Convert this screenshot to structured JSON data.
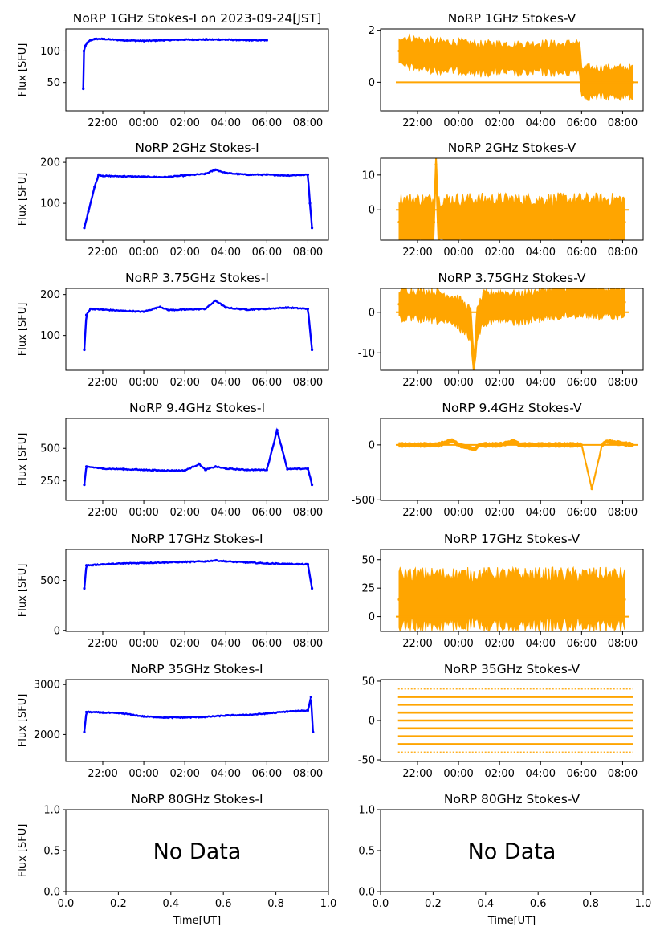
{
  "figure": {
    "x_label": "Time[UT]",
    "y_label": "Flux [SFU]",
    "no_data_text": "No Data",
    "time_ticks": [
      "22:00",
      "00:00",
      "02:00",
      "04:00",
      "06:00",
      "08:00"
    ],
    "colors": {
      "stokes_i": "#0000ff",
      "stokes_v": "#ffa500",
      "axis": "#000000"
    }
  },
  "chart_data": [
    {
      "id": "i1",
      "type": "scatter",
      "title": "NoRP 1GHz Stokes-I on 2023-09-24[JST]",
      "ylabel": "Flux [SFU]",
      "ylim": [
        5,
        135
      ],
      "yticks": [
        50,
        100
      ],
      "xlim": [
        20.2,
        33.0
      ],
      "x": [
        21.05,
        21.08,
        21.15,
        21.25,
        21.4,
        21.6,
        22.0,
        23.0,
        24.0,
        25.0,
        26.0,
        27.0,
        28.0,
        29.0,
        30.0
      ],
      "values": [
        40,
        100,
        108,
        113,
        117,
        119,
        119,
        117,
        116,
        117,
        118,
        118,
        118,
        117,
        117
      ],
      "series": [
        {
          "name": "Stokes-I",
          "color": "#0000ff"
        }
      ]
    },
    {
      "id": "v1",
      "type": "scatter",
      "title": "NoRP 1GHz Stokes-V",
      "ylabel": "",
      "ylim": [
        -1.1,
        2.05
      ],
      "yticks": [
        0,
        2
      ],
      "xlim": [
        20.2,
        33.0
      ],
      "x": [
        21.1,
        22.0,
        23.0,
        24.0,
        25.0,
        26.0,
        27.0,
        28.0,
        29.0,
        29.9,
        30.0,
        31.0,
        32.5
      ],
      "values": [
        1.2,
        1.1,
        1.0,
        1.0,
        0.9,
        0.95,
        0.9,
        0.95,
        0.9,
        1.0,
        0,
        0,
        0
      ],
      "series": [
        {
          "name": "Stokes-V",
          "color": "#ffa500"
        }
      ]
    },
    {
      "id": "i2",
      "type": "scatter",
      "title": "NoRP 2GHz Stokes-I",
      "ylabel": "Flux [SFU]",
      "ylim": [
        10,
        210
      ],
      "yticks": [
        100,
        200
      ],
      "xlim": [
        20.2,
        33.0
      ],
      "x": [
        21.1,
        21.3,
        21.6,
        21.8,
        22.0,
        23.0,
        24.0,
        25.0,
        26.0,
        27.0,
        27.5,
        28.0,
        29.0,
        30.0,
        31.0,
        32.0,
        32.1,
        32.2
      ],
      "values": [
        40,
        80,
        140,
        170,
        167,
        166,
        165,
        164,
        168,
        172,
        182,
        174,
        170,
        170,
        168,
        170,
        100,
        40
      ],
      "series": [
        {
          "name": "Stokes-I",
          "color": "#0000ff"
        }
      ]
    },
    {
      "id": "v2",
      "type": "scatter",
      "title": "NoRP 2GHz Stokes-V",
      "ylabel": "",
      "ylim": [
        -8.7,
        14.8
      ],
      "yticks": [
        0,
        10
      ],
      "xlim": [
        20.2,
        33.0
      ],
      "x": [
        21.1,
        22.0,
        22.8,
        22.9,
        23.0,
        24.0,
        25.0,
        26.0,
        27.0,
        28.0,
        29.0,
        30.0,
        31.0,
        32.1
      ],
      "values": [
        -3.5,
        -3.5,
        -3.5,
        13,
        -3.5,
        -3.5,
        -3.5,
        -3.5,
        -3.5,
        -3.5,
        -3.5,
        -3.5,
        -3.5,
        -3.5
      ],
      "series": [
        {
          "name": "Stokes-V",
          "color": "#ffa500"
        }
      ]
    },
    {
      "id": "i3",
      "type": "scatter",
      "title": "NoRP 3.75GHz Stokes-I",
      "ylabel": "Flux [SFU]",
      "ylim": [
        15,
        215
      ],
      "yticks": [
        100,
        200
      ],
      "xlim": [
        20.2,
        33.0
      ],
      "x": [
        21.1,
        21.2,
        21.4,
        22.0,
        23.0,
        24.0,
        24.8,
        25.2,
        26.0,
        27.0,
        27.5,
        27.8,
        28.0,
        29.0,
        30.0,
        31.0,
        32.0,
        32.2
      ],
      "values": [
        65,
        150,
        165,
        163,
        160,
        158,
        170,
        162,
        163,
        165,
        185,
        175,
        168,
        163,
        165,
        168,
        165,
        65
      ],
      "series": [
        {
          "name": "Stokes-I",
          "color": "#0000ff"
        }
      ]
    },
    {
      "id": "v3",
      "type": "scatter",
      "title": "NoRP 3.75GHz Stokes-V",
      "ylabel": "",
      "ylim": [
        -14.3,
        5.9
      ],
      "yticks": [
        -10,
        0
      ],
      "xlim": [
        20.2,
        33.0
      ],
      "x": [
        21.1,
        22.0,
        23.0,
        24.0,
        24.6,
        24.75,
        24.9,
        25.2,
        26.0,
        27.0,
        28.0,
        29.0,
        30.0,
        31.0,
        32.1
      ],
      "values": [
        2,
        1.8,
        1.5,
        0,
        -3,
        -13.5,
        -3,
        1,
        1.5,
        1,
        2,
        2.5,
        3,
        2.5,
        2.5
      ],
      "series": [
        {
          "name": "Stokes-V",
          "color": "#ffa500"
        }
      ]
    },
    {
      "id": "i4",
      "type": "scatter",
      "title": "NoRP 9.4GHz Stokes-I",
      "ylabel": "Flux [SFU]",
      "ylim": [
        100,
        730
      ],
      "yticks": [
        250,
        500
      ],
      "xlim": [
        20.2,
        33.0
      ],
      "x": [
        21.1,
        21.2,
        22.0,
        23.0,
        24.0,
        25.0,
        26.0,
        26.7,
        27.0,
        27.5,
        28.0,
        29.0,
        30.0,
        30.5,
        31.0,
        32.0,
        32.2
      ],
      "values": [
        220,
        360,
        345,
        340,
        335,
        330,
        330,
        380,
        335,
        360,
        345,
        335,
        335,
        640,
        340,
        345,
        220
      ],
      "series": [
        {
          "name": "Stokes-I",
          "color": "#0000ff"
        }
      ]
    },
    {
      "id": "v4",
      "type": "scatter",
      "title": "NoRP 9.4GHz Stokes-V",
      "ylabel": "",
      "ylim": [
        -505,
        240
      ],
      "yticks": [
        -500,
        0
      ],
      "xlim": [
        20.2,
        33.0
      ],
      "x": [
        21.1,
        22.0,
        23.0,
        23.7,
        24.0,
        24.8,
        25.0,
        26.0,
        26.7,
        27.0,
        28.0,
        29.0,
        30.0,
        30.5,
        31.0,
        31.2,
        32.5
      ],
      "values": [
        0,
        0,
        0,
        40,
        0,
        -40,
        0,
        0,
        30,
        0,
        0,
        0,
        0,
        -400,
        0,
        30,
        0
      ],
      "series": [
        {
          "name": "Stokes-V",
          "color": "#ffa500"
        }
      ]
    },
    {
      "id": "i5",
      "type": "scatter",
      "title": "NoRP 17GHz Stokes-I",
      "ylabel": "Flux [SFU]",
      "ylim": [
        -10,
        810
      ],
      "yticks": [
        0,
        500
      ],
      "xlim": [
        20.2,
        33.0
      ],
      "x": [
        21.1,
        21.2,
        22.0,
        23.0,
        24.0,
        25.0,
        26.0,
        27.0,
        27.5,
        28.0,
        29.0,
        30.0,
        31.0,
        32.0,
        32.2
      ],
      "values": [
        420,
        650,
        660,
        670,
        675,
        680,
        685,
        690,
        700,
        690,
        680,
        670,
        665,
        660,
        420
      ],
      "series": [
        {
          "name": "Stokes-I",
          "color": "#0000ff"
        }
      ]
    },
    {
      "id": "v5",
      "type": "scatter",
      "title": "NoRP 17GHz Stokes-V",
      "ylabel": "",
      "ylim": [
        -13,
        59
      ],
      "yticks": [
        0,
        25,
        50
      ],
      "xlim": [
        20.2,
        33.0
      ],
      "x": [
        21.1,
        22.0,
        23.0,
        24.0,
        25.0,
        26.0,
        27.0,
        28.0,
        29.0,
        30.0,
        31.0,
        32.1
      ],
      "values": [
        15,
        15,
        15,
        15,
        15,
        15,
        15,
        15,
        15,
        15,
        15,
        15
      ],
      "series": [
        {
          "name": "Stokes-V",
          "color": "#ffa500"
        }
      ]
    },
    {
      "id": "i6",
      "type": "scatter",
      "title": "NoRP 35GHz Stokes-I",
      "ylabel": "Flux [SFU]",
      "ylim": [
        1460,
        3100
      ],
      "yticks": [
        2000,
        3000
      ],
      "xlim": [
        20.2,
        33.0
      ],
      "x": [
        21.1,
        21.2,
        22.0,
        23.0,
        24.0,
        25.0,
        26.0,
        27.0,
        28.0,
        29.0,
        30.0,
        31.0,
        32.0,
        32.15,
        32.25
      ],
      "values": [
        2050,
        2450,
        2440,
        2420,
        2360,
        2340,
        2340,
        2350,
        2380,
        2390,
        2420,
        2460,
        2480,
        2750,
        2050
      ],
      "series": [
        {
          "name": "Stokes-I",
          "color": "#0000ff"
        }
      ]
    },
    {
      "id": "v6",
      "type": "scatter",
      "title": "NoRP 35GHz Stokes-V",
      "ylabel": "",
      "ylim": [
        -52,
        52
      ],
      "yticks": [
        -50,
        0,
        50
      ],
      "xlim": [
        20.2,
        33.0
      ],
      "levels": [
        40,
        30,
        20,
        10,
        0,
        -10,
        -20,
        -30,
        -40
      ],
      "series": [
        {
          "name": "Stokes-V",
          "color": "#ffa500"
        }
      ]
    },
    {
      "id": "i7",
      "type": "scatter",
      "title": "NoRP 80GHz Stokes-I",
      "ylabel": "Flux [SFU]",
      "xlabel": "Time[UT]",
      "xlim": [
        0.0,
        1.0
      ],
      "ylim": [
        0.0,
        1.0
      ],
      "xticks": [
        "0.0",
        "0.2",
        "0.4",
        "0.6",
        "0.8",
        "1.0"
      ],
      "yticks": [
        "0.0",
        "0.5",
        "1.0"
      ],
      "annotation": "No Data"
    },
    {
      "id": "v7",
      "type": "scatter",
      "title": "NoRP 80GHz Stokes-V",
      "ylabel": "",
      "xlabel": "Time[UT]",
      "xlim": [
        0.0,
        1.0
      ],
      "ylim": [
        0.0,
        1.0
      ],
      "xticks": [
        "0.0",
        "0.2",
        "0.4",
        "0.6",
        "0.8",
        "1.0"
      ],
      "yticks": [
        "0.0",
        "0.5",
        "1.0"
      ],
      "annotation": "No Data"
    }
  ]
}
